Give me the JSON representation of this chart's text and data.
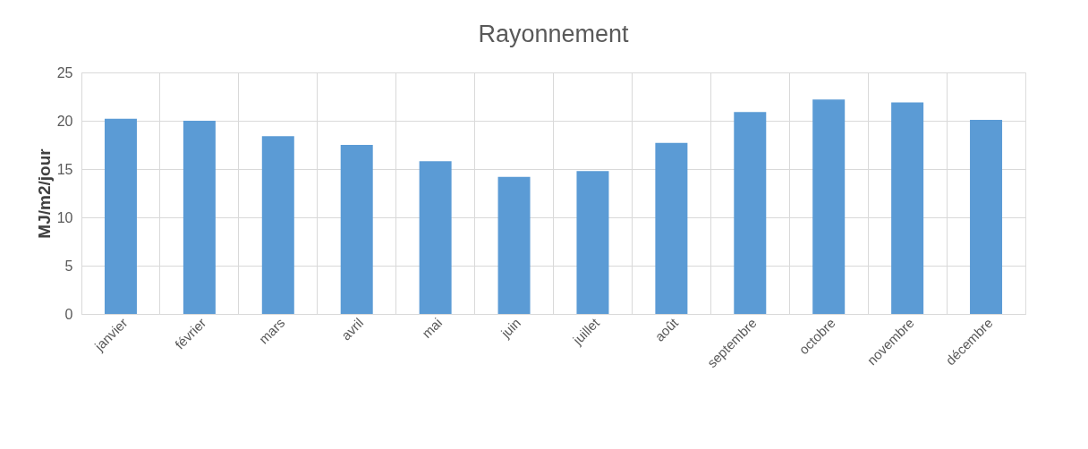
{
  "chart_data": {
    "type": "bar",
    "title": "Rayonnement",
    "ylabel": "MJ/m2/jour",
    "categories": [
      "janvier",
      "février",
      "mars",
      "avril",
      "mai",
      "juin",
      "juillet",
      "août",
      "septembre",
      "octobre",
      "novembre",
      "décembre"
    ],
    "values": [
      20.2,
      20.0,
      18.4,
      17.5,
      15.8,
      14.2,
      14.8,
      17.7,
      20.9,
      22.2,
      21.9,
      20.1
    ],
    "color": "#5b9bd5",
    "ylim": [
      0,
      25
    ],
    "yticks": [
      0,
      5,
      10,
      15,
      20,
      25
    ],
    "grid": true
  }
}
